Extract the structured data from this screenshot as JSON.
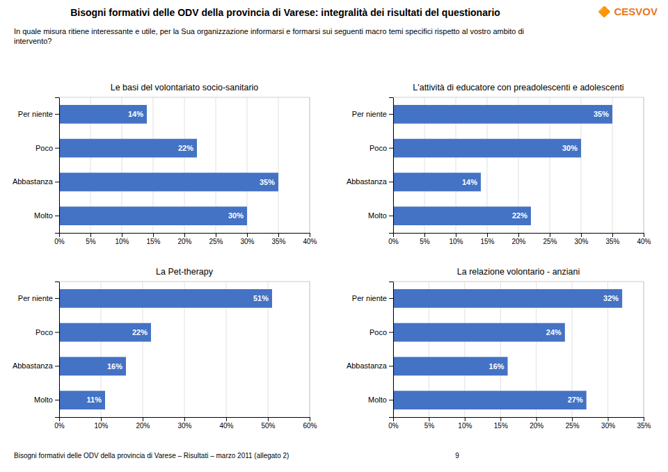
{
  "title": "Bisogni formativi delle ODV della provincia di Varese: integralità dei risultati del questionario",
  "subtitle": "In quale misura ritiene interessante e utile, per la Sua organizzazione informarsi e formarsi sui seguenti macro temi specifici rispetto al vostro ambito di\nintervento?",
  "annotations": [
    {
      "text": "Bisogni formativi delle ODV della provincia di Varese – Risultati – marzo 2011 (allegato 2)                                                                                      9"
    },
    {
      "text": "🔶 CESVOV",
      "color": "#E87722"
    }
  ],
  "chart_data": [
    {
      "type": "bar",
      "orientation": "horizontal",
      "title": "Le basi del volontariato socio-sanitario",
      "categories": [
        "Per niente",
        "Poco",
        "Abbastanza",
        "Molto"
      ],
      "values": [
        14,
        22,
        35,
        30
      ],
      "value_labels": [
        "14%",
        "22%",
        "35%",
        "30%"
      ],
      "data_labels": true,
      "color": "#4472C4",
      "grid": true,
      "xlim": [
        0,
        40
      ],
      "xticks": [
        {
          "value": 0,
          "label": "0%"
        },
        {
          "value": 5,
          "label": "5%"
        },
        {
          "value": 10,
          "label": "10%"
        },
        {
          "value": 15,
          "label": "15%"
        },
        {
          "value": 20,
          "label": "20%"
        },
        {
          "value": 25,
          "label": "25%"
        },
        {
          "value": 30,
          "label": "30%"
        },
        {
          "value": 35,
          "label": "35%"
        },
        {
          "value": 40,
          "label": "40%"
        }
      ]
    },
    {
      "type": "bar",
      "orientation": "horizontal",
      "title": "L'attività di educatore con preadolescenti e adolescenti",
      "categories": [
        "Per niente",
        "Poco",
        "Abbastanza",
        "Molto"
      ],
      "values": [
        35,
        30,
        14,
        22
      ],
      "value_labels": [
        "35%",
        "30%",
        "14%",
        "22%"
      ],
      "data_labels": true,
      "color": "#4472C4",
      "grid": true,
      "xlim": [
        0,
        40
      ],
      "xticks": [
        {
          "value": 0,
          "label": "0%"
        },
        {
          "value": 5,
          "label": "5%"
        },
        {
          "value": 10,
          "label": "10%"
        },
        {
          "value": 15,
          "label": "15%"
        },
        {
          "value": 20,
          "label": "20%"
        },
        {
          "value": 25,
          "label": "25%"
        },
        {
          "value": 30,
          "label": "30%"
        },
        {
          "value": 35,
          "label": "35%"
        },
        {
          "value": 40,
          "label": "40%"
        }
      ]
    },
    {
      "type": "bar",
      "orientation": "horizontal",
      "title": "La Pet-therapy",
      "categories": [
        "Per niente",
        "Poco",
        "Abbastanza",
        "Molto"
      ],
      "values": [
        51,
        22,
        16,
        11
      ],
      "value_labels": [
        "51%",
        "22%",
        "16%",
        "11%"
      ],
      "data_labels": true,
      "color": "#4472C4",
      "grid": true,
      "xlim": [
        0,
        60
      ],
      "xticks": [
        {
          "value": 0,
          "label": "0%"
        },
        {
          "value": 10,
          "label": "10%"
        },
        {
          "value": 20,
          "label": "20%"
        },
        {
          "value": 30,
          "label": "30%"
        },
        {
          "value": 40,
          "label": "40%"
        },
        {
          "value": 50,
          "label": "50%"
        },
        {
          "value": 60,
          "label": "60%"
        }
      ]
    },
    {
      "type": "bar",
      "orientation": "horizontal",
      "title": "La relazione volontario - anziani",
      "categories": [
        "Per niente",
        "Poco",
        "Abbastanza",
        "Molto"
      ],
      "values": [
        32,
        24,
        16,
        27
      ],
      "value_labels": [
        "32%",
        "24%",
        "16%",
        "27%"
      ],
      "data_labels": true,
      "color": "#4472C4",
      "grid": true,
      "xlim": [
        0,
        35
      ],
      "xticks": [
        {
          "value": 0,
          "label": "0%"
        },
        {
          "value": 5,
          "label": "5%"
        },
        {
          "value": 10,
          "label": "10%"
        },
        {
          "value": 15,
          "label": "15%"
        },
        {
          "value": 20,
          "label": "20%"
        },
        {
          "value": 25,
          "label": "25%"
        },
        {
          "value": 30,
          "label": "30%"
        },
        {
          "value": 35,
          "label": "35%"
        }
      ]
    }
  ]
}
